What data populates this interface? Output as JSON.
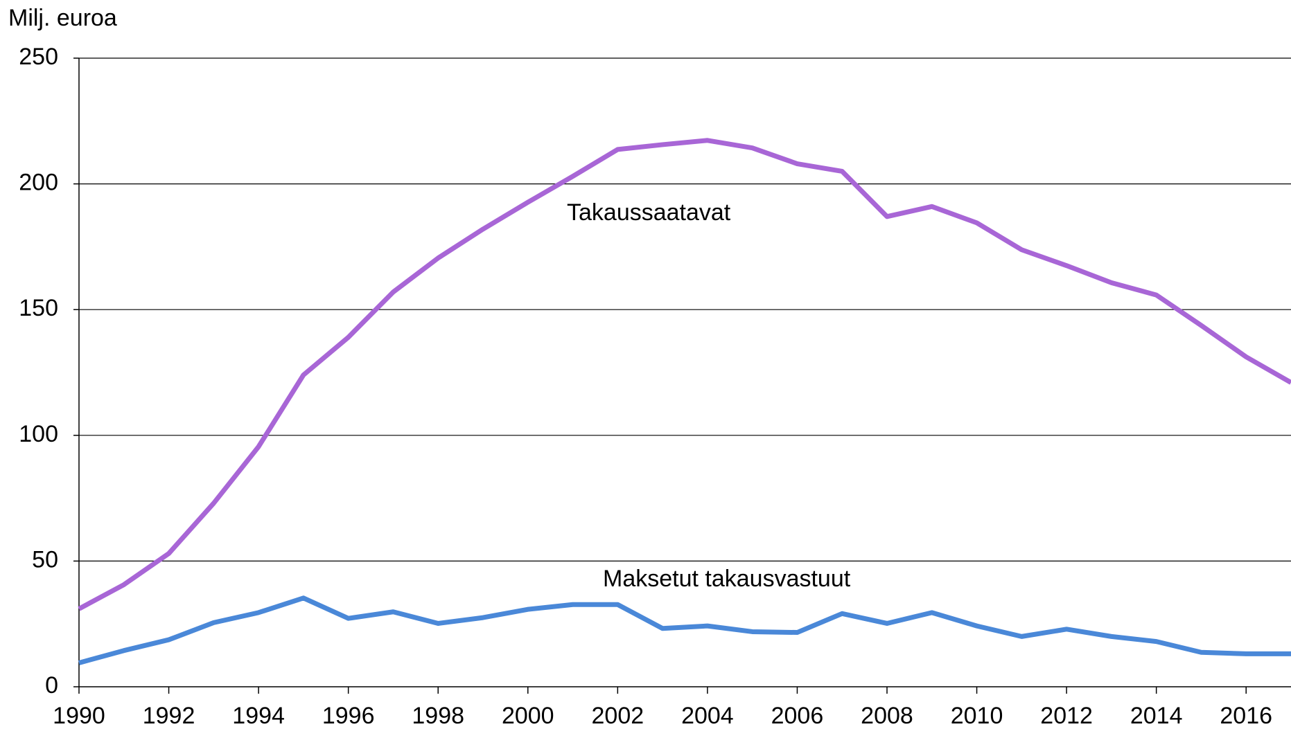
{
  "chart_data": {
    "type": "line",
    "y_label": "Milj. euroa",
    "x": [
      1990,
      1991,
      1992,
      1993,
      1994,
      1995,
      1996,
      1997,
      1998,
      1999,
      2000,
      2001,
      2002,
      2003,
      2004,
      2005,
      2006,
      2007,
      2008,
      2009,
      2010,
      2011,
      2012,
      2013,
      2014,
      2015,
      2016,
      2017
    ],
    "series": [
      {
        "name": "Takaussaatavat",
        "color": "#a866d6",
        "values": [
          31,
          40.6,
          53,
          73,
          95.5,
          124,
          139,
          157,
          170.5,
          182,
          192.7,
          203,
          213.7,
          215.6,
          217.3,
          214.3,
          208,
          205,
          187,
          191,
          184.5,
          173.8,
          167.5,
          160.7,
          155.8,
          143.7,
          131.2,
          121
        ]
      },
      {
        "name": "Maksetut takausvastuut",
        "color": "#4a88d8",
        "values": [
          9.5,
          14.4,
          18.7,
          25.5,
          29.5,
          35.3,
          27.2,
          29.8,
          25.2,
          27.5,
          30.8,
          32.7,
          32.7,
          23.2,
          24.2,
          21.9,
          21.6,
          29.1,
          25.2,
          29.5,
          24.2,
          20,
          22.9,
          20,
          18,
          13.7,
          13.1,
          13.1
        ]
      }
    ],
    "xlim": [
      1990,
      2017
    ],
    "xticks": [
      1990,
      1992,
      1994,
      1996,
      1998,
      2000,
      2002,
      2004,
      2006,
      2008,
      2010,
      2012,
      2014,
      2016
    ],
    "ylim": [
      0,
      250
    ],
    "yticks": [
      0,
      50,
      100,
      150,
      200,
      250
    ],
    "grid": true
  }
}
